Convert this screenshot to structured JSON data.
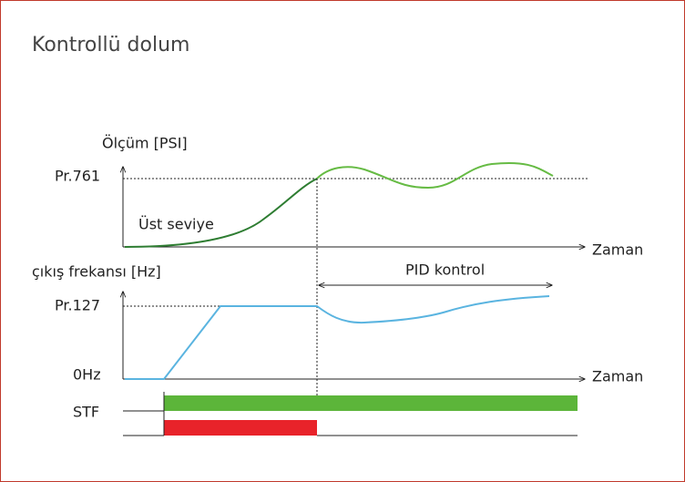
{
  "title": "Kontrollü dolum",
  "upper_chart": {
    "y_label": "Ölçüm [PSI]",
    "level_label": "Pr.761",
    "curve_label": "Üst seviye",
    "x_label": "Zaman"
  },
  "lower_chart": {
    "y_label": "çıkış frekansı [Hz]",
    "region_label": "PID kontrol",
    "level_label": "Pr.127",
    "zero_label": "0Hz",
    "x_label": "Zaman"
  },
  "signals": {
    "stf_label": "STF"
  }
}
